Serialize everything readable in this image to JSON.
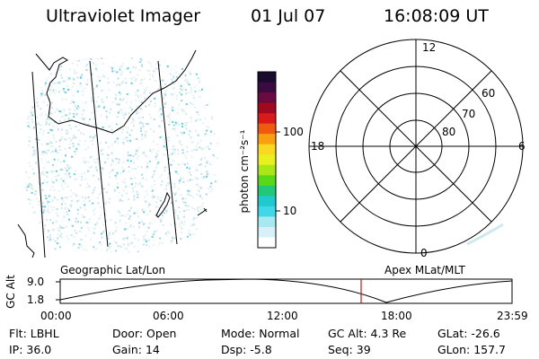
{
  "header": {
    "instrument": "Ultraviolet Imager",
    "date": "01 Jul 07",
    "time": "16:08:09 UT"
  },
  "colorbar": {
    "unit_label": "photon cm⁻²s⁻¹",
    "ticks": [
      "100",
      "10"
    ],
    "colors": [
      "#1a0a2e",
      "#3a0a40",
      "#6a0a40",
      "#a00a20",
      "#d81a1a",
      "#f05a10",
      "#f8a010",
      "#f8d820",
      "#e8f020",
      "#a8e818",
      "#58d818",
      "#20c878",
      "#20c8d0",
      "#40d8e8",
      "#a8e8f0",
      "#d8f0f8",
      "#ffffff"
    ]
  },
  "polar_plot": {
    "labels": {
      "top": "12",
      "left": "18",
      "right": "6",
      "bottom": "0"
    },
    "ring_labels": [
      "60",
      "70",
      "80"
    ]
  },
  "timeline": {
    "left_title": "Geographic Lat/Lon",
    "right_title": "Apex MLat/MLT",
    "y_axis_label": "GC Alt",
    "y_ticks": [
      "9.0",
      "1.8"
    ],
    "x_ticks": [
      "00:00",
      "06:00",
      "12:00",
      "18:00",
      "23:59"
    ],
    "current_time_marker": "16:08",
    "altitude_range_re": [
      1.8,
      9.0
    ],
    "accent_color": "#d01010"
  },
  "info": {
    "row1": [
      {
        "key": "Flt:",
        "value": "LBHL"
      },
      {
        "key": "Door:",
        "value": "Open"
      },
      {
        "key": "Mode:",
        "value": "Normal"
      },
      {
        "key": "GC Alt:",
        "value": "4.3 Re"
      },
      {
        "key": "GLat:",
        "value": "-26.6"
      }
    ],
    "row2": [
      {
        "key": "IP:",
        "value": "36.0"
      },
      {
        "key": "Gain:",
        "value": "14"
      },
      {
        "key": "Dsp:",
        "value": "-5.8"
      },
      {
        "key": "Seq:",
        "value": "39"
      },
      {
        "key": "GLon:",
        "value": "157.7"
      }
    ]
  }
}
